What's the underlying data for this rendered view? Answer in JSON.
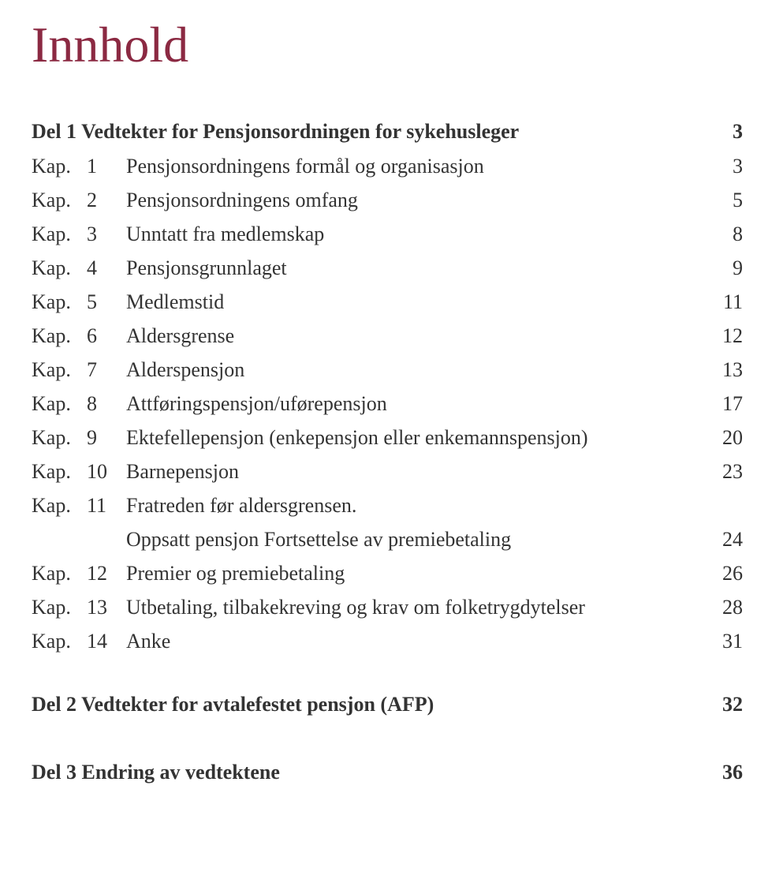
{
  "title": {
    "text": "Innhold",
    "color": "#8b2942",
    "fontsize": 64
  },
  "part1": {
    "label": "Del 1 Vedtekter for Pensjonsordningen for sykehusleger",
    "page": "3"
  },
  "chapters": [
    {
      "prefix": "Kap.",
      "num": "1",
      "title": "Pensjonsordningens formål og organisasjon",
      "page": "3"
    },
    {
      "prefix": "Kap.",
      "num": "2",
      "title": "Pensjonsordningens omfang",
      "page": "5"
    },
    {
      "prefix": "Kap.",
      "num": "3",
      "title": "Unntatt fra medlemskap",
      "page": "8"
    },
    {
      "prefix": "Kap.",
      "num": "4",
      "title": "Pensjonsgrunnlaget",
      "page": "9"
    },
    {
      "prefix": "Kap.",
      "num": "5",
      "title": "Medlemstid",
      "page": "11"
    },
    {
      "prefix": "Kap.",
      "num": "6",
      "title": "Aldersgrense",
      "page": "12"
    },
    {
      "prefix": "Kap.",
      "num": "7",
      "title": "Alderspensjon",
      "page": "13"
    },
    {
      "prefix": "Kap.",
      "num": "8",
      "title": "Attføringspensjon/uførepensjon",
      "page": "17"
    },
    {
      "prefix": "Kap.",
      "num": "9",
      "title": "Ektefellepensjon (enkepensjon eller enkemannspensjon)",
      "page": "20"
    },
    {
      "prefix": "Kap.",
      "num": "10",
      "title": "Barnepensjon",
      "page": "23"
    },
    {
      "prefix": "Kap.",
      "num": "11",
      "title": "Fratreden før aldersgrensen.",
      "continuation": "Oppsatt pensjon Fortsettelse av premiebetaling",
      "page": "24"
    },
    {
      "prefix": "Kap.",
      "num": "12",
      "title": "Premier og premiebetaling",
      "page": "26"
    },
    {
      "prefix": "Kap.",
      "num": "13",
      "title": "Utbetaling, tilbakekreving og krav om folketrygdytelser",
      "page": "28"
    },
    {
      "prefix": "Kap.",
      "num": "14",
      "title": "Anke",
      "page": "31"
    }
  ],
  "part2": {
    "label": "Del 2 Vedtekter for avtalefestet pensjon (AFP)",
    "page": "32"
  },
  "part3": {
    "label": "Del 3 Endring av vedtektene",
    "page": "36"
  },
  "colors": {
    "title": "#8b2942",
    "text": "#333333",
    "background": "#ffffff"
  }
}
